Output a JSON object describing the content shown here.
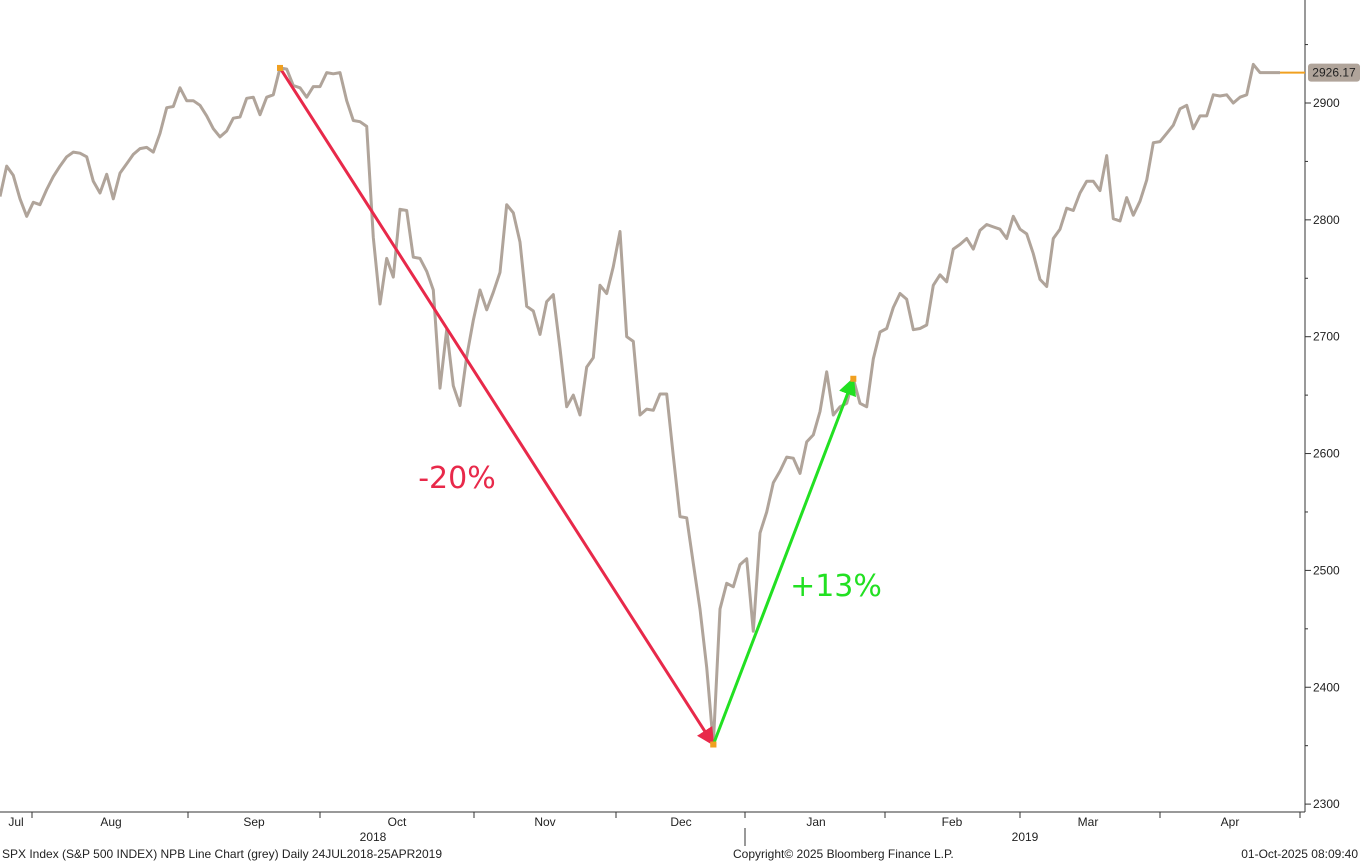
{
  "chart_data": {
    "type": "line",
    "y_axis": {
      "ylim": [
        2300,
        2960
      ],
      "ticks": [
        2300,
        2400,
        2500,
        2600,
        2700,
        2800,
        2900
      ],
      "position": "right"
    },
    "x_axis": {
      "months": [
        "Jul",
        "Aug",
        "Sep",
        "Oct",
        "Nov",
        "Dec",
        "Jan",
        "Feb",
        "Mar",
        "Apr"
      ],
      "years": [
        "2018",
        "2019"
      ]
    },
    "grid": false,
    "series": [
      {
        "color": "#b0a49a",
        "values": [
          2820,
          2846,
          2838,
          2818,
          2803,
          2815,
          2813,
          2826,
          2837,
          2846,
          2854,
          2858,
          2857,
          2854,
          2833,
          2823,
          2839,
          2818,
          2840,
          2848,
          2856,
          2861,
          2862,
          2858,
          2874,
          2896,
          2897,
          2913,
          2902,
          2902,
          2898,
          2889,
          2878,
          2871,
          2876,
          2887,
          2888,
          2904,
          2905,
          2890,
          2905,
          2907,
          2930,
          2929,
          2915,
          2913,
          2905,
          2914,
          2914,
          2926,
          2925,
          2926,
          2902,
          2885,
          2884,
          2880,
          2785,
          2728,
          2767,
          2751,
          2809,
          2808,
          2768,
          2767,
          2756,
          2740,
          2656,
          2706,
          2658,
          2641,
          2683,
          2714,
          2740,
          2723,
          2738,
          2755,
          2813,
          2806,
          2781,
          2726,
          2722,
          2702,
          2730,
          2736,
          2690,
          2640,
          2650,
          2633,
          2674,
          2682,
          2744,
          2737,
          2760,
          2790,
          2700,
          2696,
          2633,
          2638,
          2637,
          2651,
          2651,
          2598,
          2546,
          2545,
          2506,
          2467,
          2417,
          2351,
          2467,
          2489,
          2486,
          2505,
          2510,
          2448,
          2532,
          2550,
          2575,
          2585,
          2597,
          2596,
          2583,
          2610,
          2616,
          2636,
          2670,
          2633,
          2640,
          2643,
          2664,
          2643,
          2640,
          2681,
          2704,
          2707,
          2725,
          2737,
          2732,
          2706,
          2707,
          2710,
          2744,
          2753,
          2747,
          2775,
          2779,
          2784,
          2775,
          2791,
          2796,
          2794,
          2792,
          2784,
          2803,
          2792,
          2788,
          2771,
          2749,
          2743,
          2784,
          2792,
          2810,
          2808,
          2823,
          2833,
          2833,
          2825,
          2855,
          2801,
          2799,
          2819,
          2804,
          2816,
          2834,
          2866,
          2867,
          2874,
          2881,
          2895,
          2898,
          2878,
          2889,
          2889,
          2907,
          2906,
          2907,
          2900,
          2905,
          2907,
          2933,
          2926,
          2926,
          2926,
          2926
        ]
      }
    ],
    "last_value_label": "2926.17",
    "annotations": [
      {
        "text": "-20%",
        "color": "#e8294a",
        "from_index": 42,
        "to_index": 107
      },
      {
        "text": "+13%",
        "color": "#22e022",
        "from_index": 107,
        "to_index": 128
      }
    ],
    "footer": {
      "left": "SPX Index (S&P 500 INDEX) NPB Line Chart (grey) Daily 24JUL2018-25APR2019",
      "center": "Copyright© 2025 Bloomberg Finance L.P.",
      "right": "01-Oct-2025 08:09:40"
    }
  }
}
